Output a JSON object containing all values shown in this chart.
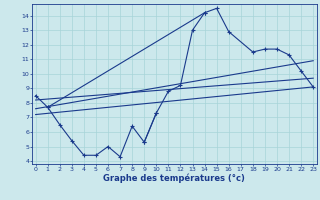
{
  "xlabel": "Graphe des températures (°c)",
  "background_color": "#cce8ec",
  "line_color": "#1a3a8c",
  "xlim": [
    -0.3,
    23.3
  ],
  "ylim": [
    3.8,
    14.8
  ],
  "yticks": [
    4,
    5,
    6,
    7,
    8,
    9,
    10,
    11,
    12,
    13,
    14
  ],
  "xticks": [
    0,
    1,
    2,
    3,
    4,
    5,
    6,
    7,
    8,
    9,
    10,
    11,
    12,
    13,
    14,
    15,
    16,
    17,
    18,
    19,
    20,
    21,
    22,
    23
  ],
  "series": [
    {
      "x": [
        0,
        1,
        14,
        15,
        16,
        18,
        19,
        20,
        21,
        22,
        23
      ],
      "y": [
        8.5,
        7.7,
        14.2,
        14.5,
        12.9,
        11.5,
        11.7,
        11.7,
        11.3,
        10.2,
        9.1
      ],
      "marker": true
    },
    {
      "x": [
        1,
        2,
        3,
        4,
        5,
        6,
        7,
        8,
        9,
        10
      ],
      "y": [
        7.7,
        6.5,
        5.4,
        4.4,
        4.4,
        5.0,
        4.3,
        6.4,
        5.3,
        7.3
      ],
      "marker": true
    },
    {
      "x": [
        9,
        10,
        11,
        12,
        13,
        14
      ],
      "y": [
        5.3,
        7.3,
        8.8,
        9.2,
        13.0,
        14.2
      ],
      "marker": true
    },
    {
      "x": [
        0,
        23
      ],
      "y": [
        7.2,
        9.1
      ],
      "marker": false
    },
    {
      "x": [
        0,
        23
      ],
      "y": [
        7.6,
        10.9
      ],
      "marker": false
    },
    {
      "x": [
        0,
        23
      ],
      "y": [
        8.2,
        9.7
      ],
      "marker": false
    }
  ]
}
